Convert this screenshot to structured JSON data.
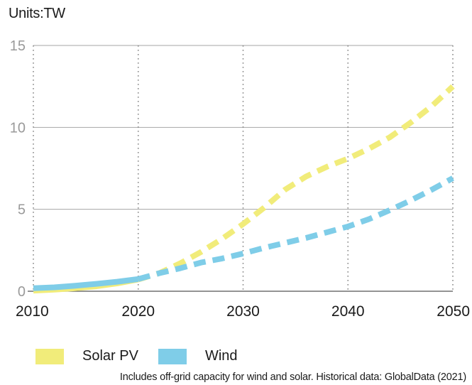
{
  "units_label": "Units:TW",
  "note": "Includes off-grid capacity for wind and solar. Historical data: GlobalData (2021)",
  "chart_data": {
    "type": "line",
    "title": "",
    "xlabel": "",
    "ylabel": "",
    "x_ticks": [
      "2010",
      "2020",
      "2030",
      "2040",
      "2050"
    ],
    "y_ticks": [
      "0",
      "5",
      "10",
      "15"
    ],
    "xlim": [
      2010,
      2050
    ],
    "ylim": [
      0,
      15
    ],
    "grid": "horizontal solid, vertical dotted",
    "legend_position": "bottom-left",
    "series": [
      {
        "name": "Solar PV",
        "color": "#f1ec7a",
        "historical": [
          [
            2010,
            0.04
          ],
          [
            2012,
            0.1
          ],
          [
            2014,
            0.18
          ],
          [
            2016,
            0.3
          ],
          [
            2018,
            0.48
          ],
          [
            2020,
            0.72
          ]
        ],
        "projection": [
          [
            2020,
            0.72
          ],
          [
            2022,
            1.1
          ],
          [
            2024,
            1.7
          ],
          [
            2026,
            2.4
          ],
          [
            2028,
            3.2
          ],
          [
            2030,
            4.1
          ],
          [
            2032,
            5.1
          ],
          [
            2034,
            6.2
          ],
          [
            2036,
            7.0
          ],
          [
            2038,
            7.6
          ],
          [
            2040,
            8.1
          ],
          [
            2042,
            8.7
          ],
          [
            2044,
            9.4
          ],
          [
            2046,
            10.3
          ],
          [
            2048,
            11.3
          ],
          [
            2050,
            12.5
          ]
        ]
      },
      {
        "name": "Wind",
        "color": "#7fcde8",
        "historical": [
          [
            2010,
            0.18
          ],
          [
            2012,
            0.24
          ],
          [
            2014,
            0.34
          ],
          [
            2016,
            0.45
          ],
          [
            2018,
            0.58
          ],
          [
            2020,
            0.74
          ]
        ],
        "projection": [
          [
            2020,
            0.74
          ],
          [
            2022,
            1.1
          ],
          [
            2024,
            1.4
          ],
          [
            2026,
            1.75
          ],
          [
            2028,
            2.0
          ],
          [
            2030,
            2.3
          ],
          [
            2032,
            2.65
          ],
          [
            2034,
            2.95
          ],
          [
            2036,
            3.25
          ],
          [
            2038,
            3.6
          ],
          [
            2040,
            3.95
          ],
          [
            2042,
            4.4
          ],
          [
            2044,
            4.95
          ],
          [
            2046,
            5.55
          ],
          [
            2048,
            6.2
          ],
          [
            2050,
            6.9
          ]
        ]
      }
    ]
  }
}
